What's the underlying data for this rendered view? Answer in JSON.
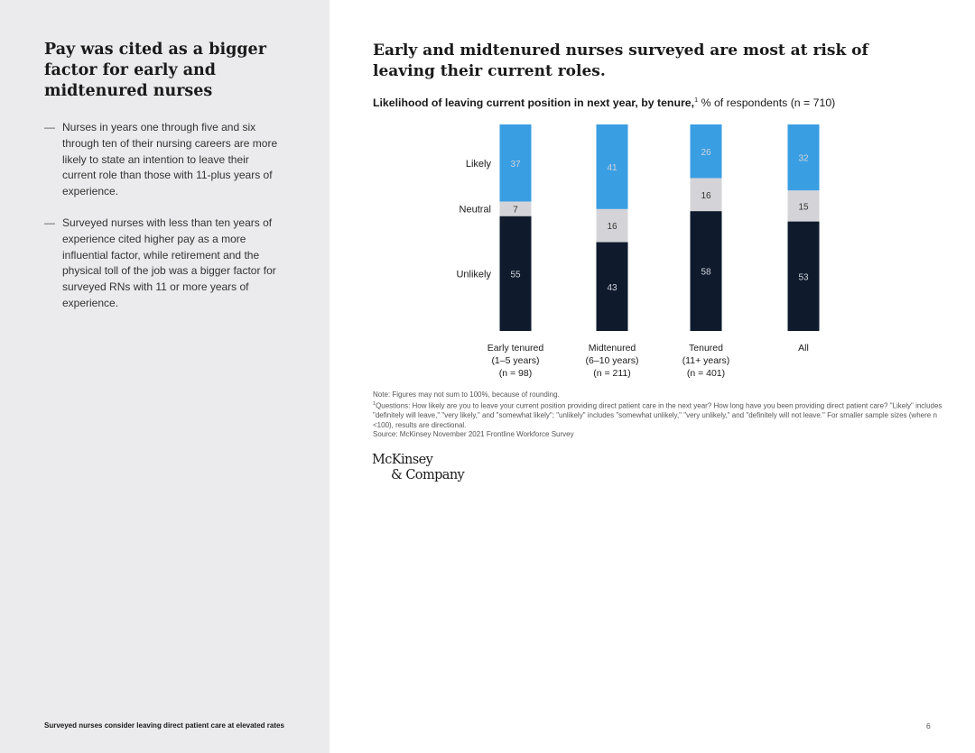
{
  "sidebar": {
    "title": "Pay was cited as a bigger factor for early and midtenured nurses",
    "bullets": [
      {
        "dash": "—",
        "text": "Nurses in years one through five and six through ten of their nursing careers are more likely to state an intention to leave their current role than those with 11-plus years of experience."
      },
      {
        "dash": "—",
        "text": "Surveyed nurses with less than ten years of experience cited higher pay as a more influential factor, while retirement and the physical toll of the job was a bigger factor for surveyed RNs with 11 or more years of experience."
      }
    ],
    "footer": "Surveyed nurses consider leaving direct patient care at elevated rates"
  },
  "page_number": "6",
  "main": {
    "title": "Early and midtenured nurses surveyed are most at risk of leaving their current roles.",
    "subtitle_bold": "Likelihood of leaving current position in next year, by tenure,",
    "subtitle_sup": "1",
    "subtitle_rest": " % of respondents (n = 710)"
  },
  "colors": {
    "likely": "#3a9ee3",
    "neutral": "#d4d4d8",
    "unlikely": "#0f1b2d",
    "label_dark_bg": "#d0d4da",
    "label_light_bg": "#333333"
  },
  "chart_data": {
    "type": "bar",
    "stacked": true,
    "normalized": true,
    "categories": [
      {
        "lines": [
          "Early tenured",
          "(1–5 years)",
          "(n = 98)"
        ]
      },
      {
        "lines": [
          "Midtenured",
          "(6–10 years)",
          "(n = 211)"
        ]
      },
      {
        "lines": [
          "Tenured",
          "(11+ years)",
          "(n = 401)"
        ]
      },
      {
        "lines": [
          "All"
        ]
      }
    ],
    "series": [
      {
        "name": "Likely",
        "key": "likely",
        "values": [
          37,
          41,
          26,
          32
        ]
      },
      {
        "name": "Neutral",
        "key": "neutral",
        "values": [
          7,
          16,
          16,
          15
        ]
      },
      {
        "name": "Unlikely",
        "key": "unlikely",
        "values": [
          55,
          43,
          58,
          53
        ]
      }
    ],
    "unit": "% of respondents"
  },
  "notes": {
    "note": "Note: Figures may not sum to 100%, because of rounding.",
    "q_sup": "1",
    "questions": "Questions: How likely are you to leave your current position providing direct patient care in the next year? How long have you been providing direct patient care? \"Likely\" includes \"definitely will leave,\" \"very likely,\" and \"somewhat likely\"; \"unlikely\" includes \"somewhat unlikely,\" \"very unlikely,\" and \"definitely will not leave.\" For smaller sample sizes (where n <100), results are directional.",
    "source": "Source: McKinsey November 2021 Frontline Workforce Survey"
  },
  "logo": {
    "line1": "McKinsey",
    "line2": "& Company"
  }
}
